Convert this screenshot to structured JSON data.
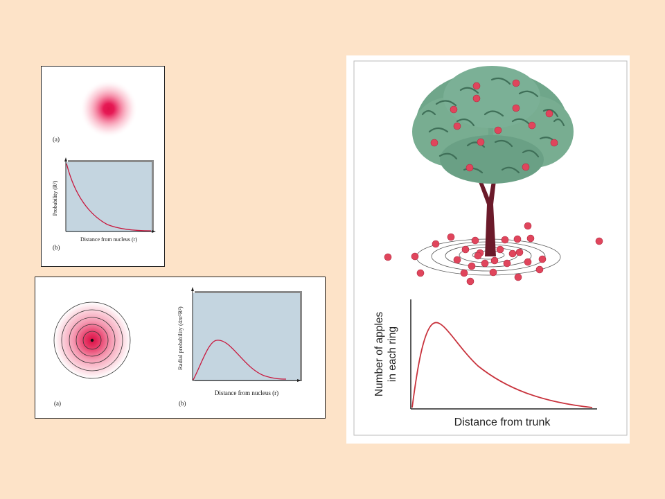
{
  "panel1": {
    "label_a": "(a)",
    "label_b": "(b)",
    "ylabel": "Probability (R²)",
    "xlabel": "Distance from nucleus (r)"
  },
  "panel2": {
    "label_a": "(a)",
    "label_b": "(b)",
    "ylabel": "Radial probability (4πr²R²)",
    "xlabel": "Distance from nucleus (r)"
  },
  "panel3": {
    "ylabel_line1": "Number of apples",
    "ylabel_line2": "in each ring",
    "xlabel": "Distance from trunk"
  },
  "colors": {
    "background": "#fde3c8",
    "plot_fill": "#c4d5e0",
    "curve": "#c8163c",
    "foliage": "#6fa68a",
    "apple": "#e0455c",
    "trunk": "#6b1a2a"
  }
}
